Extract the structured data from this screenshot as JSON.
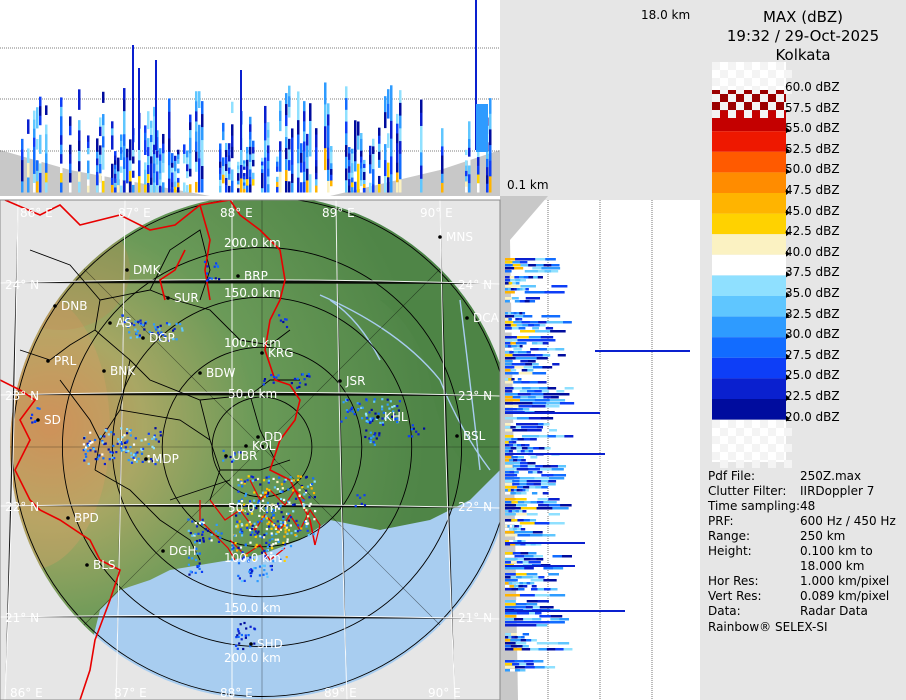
{
  "header": {
    "product": "MAX (dBZ)",
    "datetime": "19:32 / 29-Oct-2025",
    "station": "Kolkata"
  },
  "height_labels": {
    "top": "18.0 km",
    "bottom": "0.1 km"
  },
  "legend": [
    {
      "label": "60.0 dBZ",
      "color": null
    },
    {
      "label": "57.5 dBZ",
      "color": "#9b0000"
    },
    {
      "label": "55.0 dBZ",
      "color": "#c40000"
    },
    {
      "label": "52.5 dBZ",
      "color": "#ee1800"
    },
    {
      "label": "50.0 dBZ",
      "color": "#ff5a00"
    },
    {
      "label": "47.5 dBZ",
      "color": "#ff8c00"
    },
    {
      "label": "45.0 dBZ",
      "color": "#ffb400"
    },
    {
      "label": "42.5 dBZ",
      "color": "#ffd200"
    },
    {
      "label": "40.0 dBZ",
      "color": "#fbf2c2"
    },
    {
      "label": "37.5 dBZ",
      "color": "#ffffff"
    },
    {
      "label": "35.0 dBZ",
      "color": "#8fe0ff"
    },
    {
      "label": "32.5 dBZ",
      "color": "#5fc6ff"
    },
    {
      "label": "30.0 dBZ",
      "color": "#2e9bff"
    },
    {
      "label": "27.5 dBZ",
      "color": "#126cff"
    },
    {
      "label": "25.0 dBZ",
      "color": "#0d3ef7"
    },
    {
      "label": "22.5 dBZ",
      "color": "#0a20cf"
    },
    {
      "label": "20.0 dBZ",
      "color": "#000c9e"
    }
  ],
  "info": [
    {
      "key": "Pdf File:",
      "value": "250Z.max"
    },
    {
      "key": "Clutter Filter:",
      "value": "IIRDoppler 7"
    },
    {
      "key": "Time sampling:",
      "value": "48"
    },
    {
      "key": "PRF:",
      "value": "600 Hz / 450 Hz"
    },
    {
      "key": "Range:",
      "value": "250 km"
    },
    {
      "key": "Height:",
      "value": "0.100 km to\n18.000 km"
    },
    {
      "key": "Hor Res:",
      "value": "1.000 km/pixel"
    },
    {
      "key": "Vert Res:",
      "value": "0.089 km/pixel"
    },
    {
      "key": "Data:",
      "value": "Radar Data"
    }
  ],
  "credit": "Rainbow® SELEX-SI",
  "map": {
    "lon_labels": [
      "86° E",
      "87° E",
      "88° E",
      "89° E",
      "90° E"
    ],
    "lat_labels": [
      "24° N",
      "23° N",
      "22° N",
      "21° N"
    ],
    "range_labels": [
      "50.0 km",
      "100.0 km",
      "150.0 km",
      "200.0 km"
    ],
    "range_km": [
      50,
      100,
      150,
      200,
      250
    ],
    "cities": [
      "MNS",
      "DMK",
      "BRP",
      "DNB",
      "SUR",
      "DCA",
      "AS",
      "DGP",
      "KRG",
      "PRL",
      "BNK",
      "BDW",
      "JSR",
      "SD",
      "KHL",
      "DD",
      "KOL",
      "BSL",
      "MDP",
      "UBR",
      "BPD",
      "DGH",
      "BLS",
      "SHD"
    ],
    "colors": {
      "land": "#5c8d50",
      "sea": "#a8cdf0",
      "outside": "#e6e6e6",
      "border": "#e80000"
    }
  }
}
